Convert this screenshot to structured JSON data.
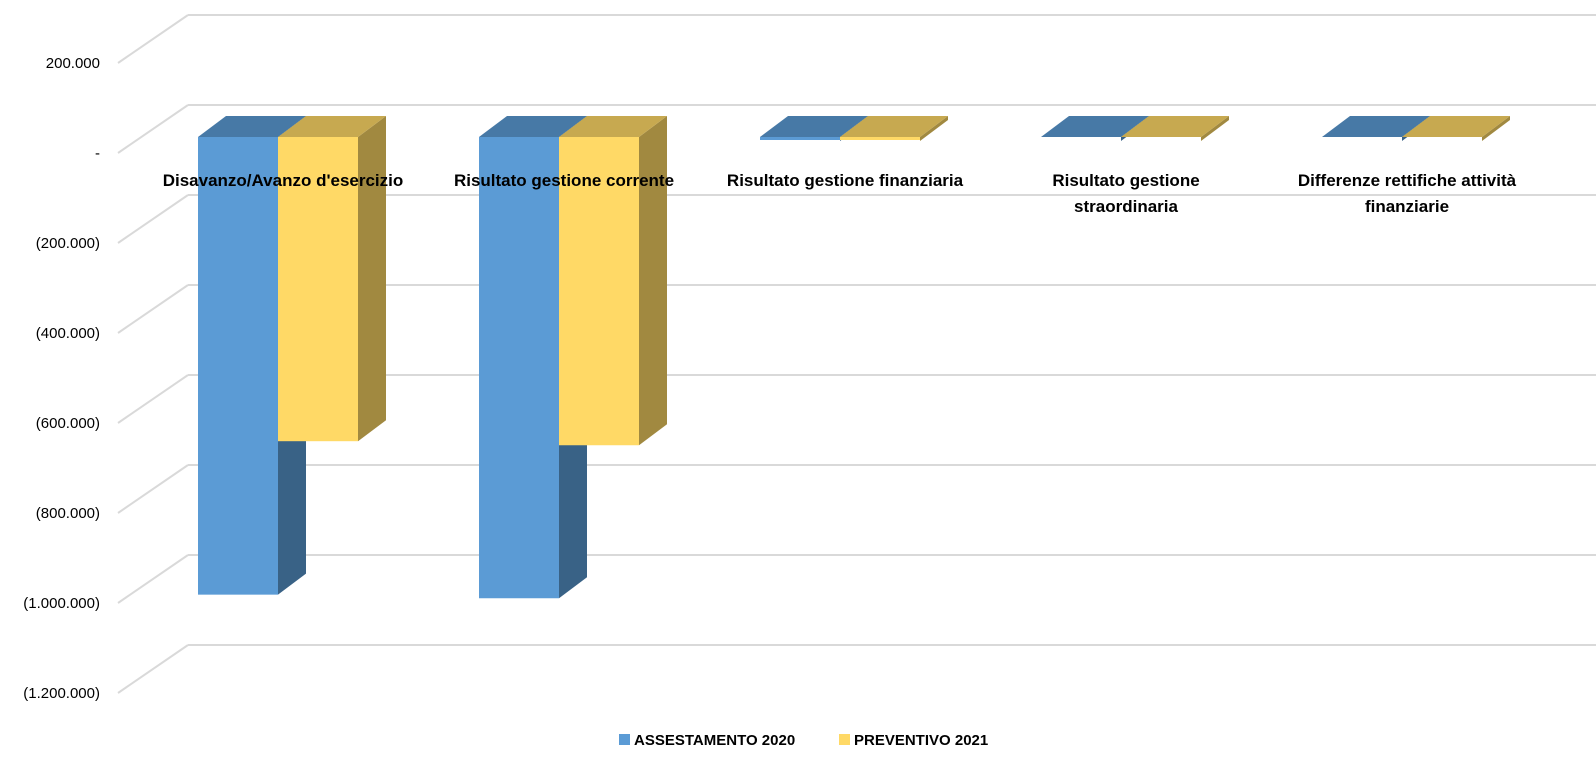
{
  "chart_data": {
    "type": "bar",
    "categories": [
      [
        "Disavanzo/Avanzo d'esercizio"
      ],
      [
        "Risultato gestione corrente"
      ],
      [
        "Risultato gestione finanziaria"
      ],
      [
        "Risultato gestione",
        "straordinaria"
      ],
      [
        "Differenze rettifiche attività",
        "finanziarie"
      ]
    ],
    "series": [
      {
        "name": "ASSESTAMENTO  2020",
        "values": [
          -1017000,
          -1025000,
          -5000,
          0,
          0
        ],
        "color": "#5B9BD5"
      },
      {
        "name": "PREVENTIVO 2021",
        "values": [
          -676000,
          -685000,
          -5000,
          0,
          0
        ],
        "color": "#FFD966"
      }
    ],
    "yticks": [
      {
        "value": 200000,
        "label": "200.000"
      },
      {
        "value": 0,
        "label": "-"
      },
      {
        "value": -200000,
        "label": "(200.000)"
      },
      {
        "value": -400000,
        "label": "(400.000)"
      },
      {
        "value": -600000,
        "label": "(600.000)"
      },
      {
        "value": -800000,
        "label": "(800.000)"
      },
      {
        "value": -1000000,
        "label": "(1.000.000)"
      },
      {
        "value": -1200000,
        "label": "(1.200.000)"
      }
    ],
    "ylim": [
      -1200000,
      200000
    ],
    "grid": true,
    "legend_position": "bottom",
    "style": "3d-clustered-column"
  }
}
